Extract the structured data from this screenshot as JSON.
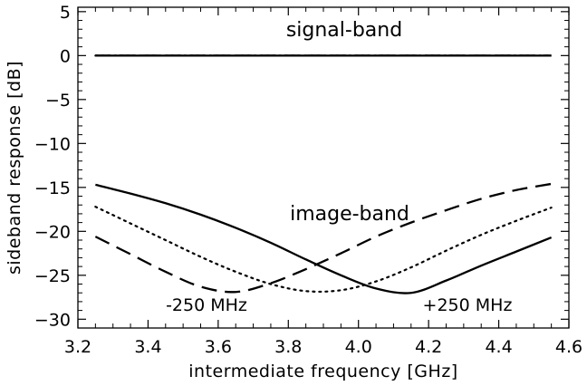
{
  "chart_data": {
    "type": "line",
    "title": "",
    "xlabel": "intermediate frequency [GHz]",
    "ylabel": "sideband response [dB]",
    "xlim": [
      3.2,
      4.6
    ],
    "ylim": [
      -31,
      5.5
    ],
    "xticks": [
      "3.2",
      "3.4",
      "3.6",
      "3.8",
      "4.0",
      "4.2",
      "4.4",
      "4.6"
    ],
    "yticks": [
      "5",
      "0",
      "-5",
      "-10",
      "-15",
      "-20",
      "-25",
      "-30"
    ],
    "grid": false,
    "annotations": {
      "signal_band": "signal-band",
      "image_band": "image-band",
      "minus_offset": "-250 MHz",
      "plus_offset": "+250 MHz"
    },
    "x": [
      3.25,
      3.35,
      3.45,
      3.55,
      3.65,
      3.75,
      3.85,
      3.95,
      4.05,
      4.15,
      4.25,
      4.35,
      4.45,
      4.55
    ],
    "series": [
      {
        "style": "solid",
        "band": "signal",
        "values": [
          0,
          0,
          0,
          0,
          0,
          0,
          0,
          0,
          0,
          0,
          0,
          0,
          0,
          0
        ]
      },
      {
        "style": "dashed",
        "band": "signal",
        "values": [
          0,
          0,
          0,
          0,
          0,
          0,
          0,
          0,
          0,
          0,
          0,
          0,
          0,
          0
        ]
      },
      {
        "style": "dotted",
        "band": "signal",
        "values": [
          0,
          0,
          0,
          0,
          0,
          0,
          0,
          0,
          0,
          0,
          0,
          0,
          0,
          0
        ]
      },
      {
        "style": "solid",
        "band": "image",
        "values": [
          -14.7,
          -15.7,
          -16.8,
          -18.1,
          -19.6,
          -21.3,
          -23.2,
          -25.0,
          -26.5,
          -27.0,
          -25.6,
          -23.9,
          -22.3,
          -20.7
        ]
      },
      {
        "style": "dotted",
        "band": "image",
        "values": [
          -17.2,
          -19.1,
          -21.0,
          -22.9,
          -24.6,
          -26.0,
          -26.8,
          -26.7,
          -25.7,
          -24.1,
          -22.2,
          -20.4,
          -18.8,
          -17.3
        ]
      },
      {
        "style": "dashed",
        "band": "image",
        "values": [
          -20.6,
          -22.6,
          -24.6,
          -26.3,
          -26.9,
          -25.9,
          -24.3,
          -22.5,
          -20.6,
          -19.0,
          -17.6,
          -16.3,
          -15.3,
          -14.6
        ]
      }
    ]
  }
}
